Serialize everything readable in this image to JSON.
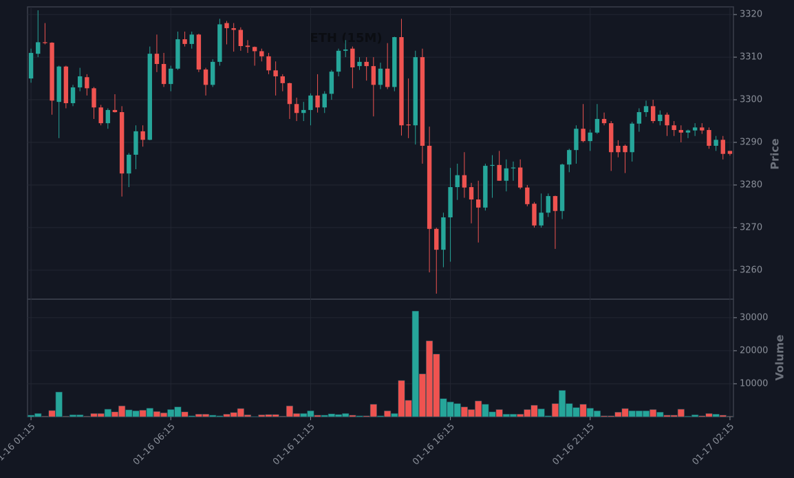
{
  "chart_data": {
    "type": "candlestick",
    "title": "ETH (15M)",
    "y_label": "Price",
    "y2_label": "Volume",
    "categories": [
      "01-16 01:15",
      null,
      null,
      null,
      null,
      null,
      null,
      null,
      null,
      null,
      null,
      null,
      null,
      null,
      null,
      null,
      null,
      null,
      null,
      null,
      "01-16 06:15",
      null,
      null,
      null,
      null,
      null,
      null,
      null,
      null,
      null,
      null,
      null,
      null,
      null,
      null,
      null,
      null,
      null,
      null,
      null,
      "01-16 11:15",
      null,
      null,
      null,
      null,
      null,
      null,
      null,
      null,
      null,
      null,
      null,
      null,
      null,
      null,
      null,
      null,
      null,
      null,
      null,
      "01-16 16:15",
      null,
      null,
      null,
      null,
      null,
      null,
      null,
      null,
      null,
      null,
      null,
      null,
      null,
      null,
      null,
      null,
      null,
      null,
      null,
      "01-16 21:15",
      null,
      null,
      null,
      null,
      null,
      null,
      null,
      null,
      null,
      null,
      null,
      null,
      null,
      null,
      null,
      null,
      null,
      null,
      null,
      "01-17 02:15"
    ],
    "open": [
      3305,
      3310.8,
      3313.5,
      3313.4,
      3299.5,
      3307.8,
      3299.2,
      3302.9,
      3305.3,
      3302.7,
      3298.2,
      3294.5,
      3297.6,
      3297.1,
      3282.7,
      3287.1,
      3292.6,
      3290.6,
      3310.8,
      3308.4,
      3303.7,
      3307.3,
      3314.2,
      3313.1,
      3315.3,
      3307.1,
      3303.5,
      3308.9,
      3318,
      3316.8,
      3316.4,
      3312.7,
      3312.4,
      3311.4,
      3310.2,
      3306.9,
      3305.5,
      3303.9,
      3299,
      3296.9,
      3297.6,
      3301,
      3298.2,
      3301.4,
      3306.6,
      3311.5,
      3312,
      3307.9,
      3308.9,
      3307.9,
      3303.5,
      3307.3,
      3303,
      3314.7,
      3294.2,
      3294,
      3310,
      3289.2,
      3269.7,
      3264.8,
      3272.4,
      3279.5,
      3282.3,
      3279.5,
      3276.6,
      3274.7,
      3284.5,
      3284.7,
      3281,
      3283.9,
      3284.1,
      3279.4,
      3275.6,
      3270.5,
      3273.5,
      3277.4,
      3273.9,
      3284.8,
      3288.2,
      3293.2,
      3290.3,
      3292.3,
      3295.5,
      3294.5,
      3289.2,
      3289.2,
      3287.7,
      3294.4,
      3297.1,
      3298.5,
      3295,
      3296.5,
      3294,
      3292.9,
      3292.3,
      3292.8,
      3293.5,
      3292.9,
      3289.2,
      3290.6,
      3288
    ],
    "high": [
      3312,
      3321,
      3318,
      3313.5,
      3308,
      3308,
      3303.5,
      3307.5,
      3306,
      3303,
      3298.8,
      3298,
      3301.3,
      3298.5,
      3287.5,
      3294,
      3294,
      3312.5,
      3315.3,
      3311,
      3308,
      3316,
      3316,
      3316,
      3315.5,
      3307.5,
      3309.5,
      3319,
      3318.5,
      3318,
      3317,
      3314,
      3312.5,
      3312,
      3311,
      3309,
      3306,
      3304,
      3300.5,
      3299.5,
      3301.5,
      3306,
      3302,
      3307,
      3312,
      3314,
      3312.5,
      3310,
      3310,
      3310,
      3308.7,
      3313.3,
      3314.8,
      3319,
      3305,
      3311.5,
      3312,
      3293.7,
      3270,
      3273.5,
      3284,
      3285,
      3287.7,
      3280.5,
      3281,
      3285,
      3287,
      3288,
      3286,
      3285.5,
      3286,
      3280,
      3276,
      3278,
      3278,
      3277.5,
      3285,
      3288.5,
      3294,
      3299,
      3293,
      3299,
      3297,
      3295,
      3290.5,
      3289.5,
      3294.8,
      3298,
      3299.8,
      3300,
      3297.5,
      3297,
      3295,
      3294,
      3293,
      3294.5,
      3294.5,
      3293.5,
      3291.5,
      3291.5,
      3288
    ],
    "low": [
      3304,
      3310,
      3313,
      3296.5,
      3291,
      3298,
      3298.5,
      3302,
      3301,
      3295.5,
      3294,
      3293.2,
      3297,
      3277.3,
      3279.5,
      3283.7,
      3289,
      3290.5,
      3306.5,
      3303,
      3302,
      3307,
      3312.5,
      3312,
      3306.5,
      3301,
      3303,
      3308,
      3313,
      3311.3,
      3311.5,
      3311,
      3308,
      3309,
      3306,
      3301,
      3302,
      3295.5,
      3295,
      3295,
      3294,
      3297,
      3296.9,
      3300,
      3305.5,
      3310,
      3302.7,
      3307,
      3304.5,
      3296.1,
      3302.5,
      3302.5,
      3302,
      3291.6,
      3291,
      3289.5,
      3285,
      3259.5,
      3254.5,
      3260.7,
      3262,
      3276.5,
      3277,
      3271,
      3266.5,
      3274,
      3277,
      3281,
      3278.5,
      3281,
      3279,
      3275,
      3270,
      3270,
      3272.5,
      3265,
      3272,
      3283,
      3285,
      3290,
      3288,
      3292,
      3294,
      3283.3,
      3286.5,
      3282.8,
      3285.5,
      3292.5,
      3296,
      3294.5,
      3294,
      3291.5,
      3291.5,
      3290,
      3291,
      3291.5,
      3292,
      3288.5,
      3288,
      3286,
      3286.9
    ],
    "close": [
      3311,
      3313.5,
      3313.3,
      3299.8,
      3307.8,
      3299.2,
      3302.9,
      3305.5,
      3302.7,
      3298.2,
      3294.5,
      3297.6,
      3297.1,
      3282.7,
      3287.1,
      3292.6,
      3290.6,
      3310.8,
      3308.4,
      3303.7,
      3307.3,
      3314.2,
      3313.1,
      3315.3,
      3307.1,
      3303.5,
      3308.9,
      3317.7,
      3316.8,
      3316.4,
      3312.6,
      3312.4,
      3311.4,
      3310.2,
      3306.9,
      3305.5,
      3303.9,
      3299,
      3296.9,
      3297.6,
      3301,
      3298.2,
      3301.4,
      3306.6,
      3311.5,
      3311.8,
      3307.6,
      3308.9,
      3307.9,
      3303.5,
      3307.3,
      3303,
      3314.7,
      3294,
      3294,
      3310,
      3289.2,
      3269.7,
      3264.8,
      3272.4,
      3279.5,
      3282.3,
      3279.4,
      3276.6,
      3274.7,
      3284.5,
      3284.7,
      3281,
      3283.9,
      3284.1,
      3279.4,
      3275.5,
      3270.5,
      3273.5,
      3277.4,
      3273.9,
      3284.8,
      3288.2,
      3293.2,
      3290.3,
      3292.3,
      3295.5,
      3294.5,
      3287.7,
      3287.7,
      3287.7,
      3294.4,
      3297.1,
      3298.5,
      3295,
      3296.5,
      3294,
      3292.9,
      3292.3,
      3292.8,
      3293.5,
      3292.8,
      3289.2,
      3290.6,
      3287.3,
      3287.3
    ],
    "volume": [
      500,
      1000,
      200,
      1900,
      7500,
      200,
      600,
      600,
      200,
      1000,
      1000,
      2300,
      1500,
      3300,
      2100,
      1800,
      2000,
      2600,
      1600,
      1200,
      2200,
      3000,
      1500,
      300,
      800,
      800,
      500,
      300,
      800,
      1300,
      2500,
      600,
      100,
      600,
      700,
      700,
      200,
      3300,
      1000,
      1000,
      1800,
      500,
      500,
      900,
      700,
      1000,
      500,
      300,
      300,
      3800,
      300,
      1800,
      1000,
      11000,
      5000,
      32000,
      13000,
      23000,
      19000,
      5500,
      4500,
      4000,
      3000,
      2200,
      4800,
      3800,
      1500,
      2200,
      800,
      800,
      800,
      2200,
      3500,
      2400,
      300,
      4000,
      8000,
      4000,
      2800,
      3800,
      2600,
      1800,
      300,
      300,
      1400,
      2500,
      1800,
      1800,
      1800,
      2200,
      1400,
      500,
      500,
      2300,
      200,
      600,
      300,
      1000,
      800,
      500,
      200
    ],
    "up_color": "#26a69a",
    "down_color": "#ef5350",
    "ylim": [
      3253.2,
      3321.8
    ],
    "yticks": [
      3260,
      3270,
      3280,
      3290,
      3300,
      3310,
      3320
    ],
    "y2lim": [
      0,
      35600
    ],
    "y2ticks": [
      10000,
      20000,
      30000
    ],
    "grid": true
  }
}
